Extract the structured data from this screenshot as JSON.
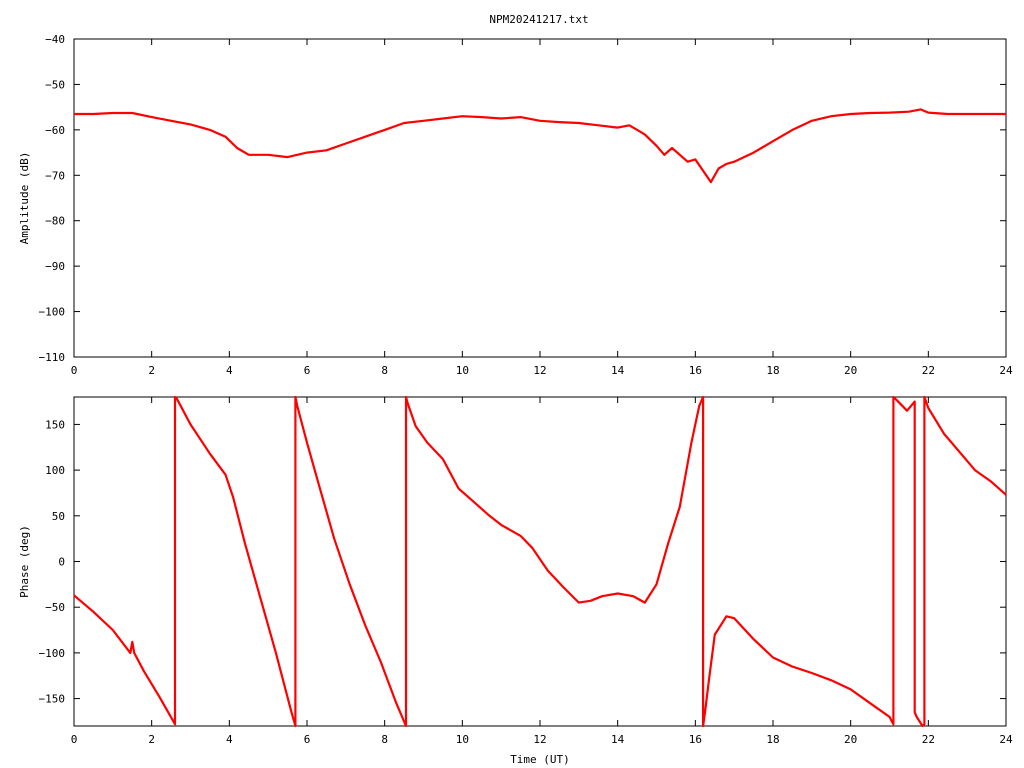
{
  "title": "NPM20241217.txt",
  "colors": {
    "series": "#ff0000",
    "axes": "#000000",
    "background": "#ffffff"
  },
  "chart_data": [
    {
      "type": "line",
      "title": "NPM20241217.txt",
      "xlabel": "",
      "ylabel": "Amplitude (dB)",
      "xlim": [
        0,
        24
      ],
      "ylim": [
        -110,
        -40
      ],
      "xticks": [
        0,
        2,
        4,
        6,
        8,
        10,
        12,
        14,
        16,
        18,
        20,
        22,
        24
      ],
      "yticks": [
        -110,
        -100,
        -90,
        -80,
        -70,
        -60,
        -50,
        -40
      ],
      "grid": false,
      "legend": "none",
      "series": [
        {
          "color": "#ff0000",
          "x": [
            0,
            0.5,
            1.0,
            1.5,
            2.0,
            2.5,
            3.0,
            3.5,
            3.9,
            4.2,
            4.5,
            5.0,
            5.5,
            6.0,
            6.5,
            7.0,
            7.5,
            8.0,
            8.5,
            9.0,
            9.5,
            10.0,
            10.5,
            11.0,
            11.5,
            12.0,
            12.5,
            13.0,
            13.5,
            14.0,
            14.3,
            14.7,
            15.0,
            15.2,
            15.4,
            15.6,
            15.8,
            16.0,
            16.2,
            16.4,
            16.6,
            16.8,
            17.0,
            17.5,
            18.0,
            18.5,
            19.0,
            19.5,
            20.0,
            20.5,
            21.0,
            21.5,
            21.8,
            22.0,
            22.5,
            23.0,
            23.5,
            24.0
          ],
          "y": [
            -56.5,
            -56.5,
            -56.3,
            -56.3,
            -57.2,
            -58.0,
            -58.8,
            -60.0,
            -61.5,
            -64.0,
            -65.5,
            -65.5,
            -66.0,
            -65.0,
            -64.5,
            -63.0,
            -61.5,
            -60.0,
            -58.5,
            -58.0,
            -57.5,
            -57.0,
            -57.2,
            -57.5,
            -57.2,
            -58.0,
            -58.3,
            -58.5,
            -59.0,
            -59.5,
            -59.0,
            -61.0,
            -63.5,
            -65.5,
            -64.0,
            -65.5,
            -67.0,
            -66.5,
            -69.0,
            -71.5,
            -68.5,
            -67.5,
            -67.0,
            -65.0,
            -62.5,
            -60.0,
            -58.0,
            -57.0,
            -56.5,
            -56.3,
            -56.2,
            -56.0,
            -55.5,
            -56.2,
            -56.5,
            -56.5,
            -56.5,
            -56.5
          ]
        }
      ]
    },
    {
      "type": "line",
      "title": "",
      "xlabel": "Time (UT)",
      "ylabel": "Phase (deg)",
      "xlim": [
        0,
        24
      ],
      "ylim": [
        -180,
        180
      ],
      "xticks": [
        0,
        2,
        4,
        6,
        8,
        10,
        12,
        14,
        16,
        18,
        20,
        22,
        24
      ],
      "yticks": [
        -150,
        -100,
        -50,
        0,
        50,
        100,
        150
      ],
      "grid": false,
      "legend": "none",
      "series": [
        {
          "color": "#ff0000",
          "x": [
            0,
            0.5,
            1.0,
            1.45,
            1.5,
            1.55,
            1.8,
            2.2,
            2.6,
            2.6,
            2.65,
            3.0,
            3.5,
            3.9,
            4.1,
            4.4,
            4.8,
            5.2,
            5.6,
            5.7,
            5.7,
            5.75,
            6.0,
            6.3,
            6.7,
            7.1,
            7.5,
            7.9,
            8.3,
            8.55,
            8.55,
            8.6,
            8.8,
            9.1,
            9.5,
            9.9,
            10.3,
            10.7,
            11.0,
            11.5,
            11.8,
            12.2,
            12.6,
            13.0,
            13.3,
            13.6,
            14.0,
            14.4,
            14.7,
            15.0,
            15.3,
            15.6,
            15.9,
            16.1,
            16.2,
            16.2,
            16.25,
            16.35,
            16.5,
            16.8,
            17.0,
            17.5,
            18.0,
            18.5,
            19.0,
            19.5,
            20.0,
            20.5,
            21.0,
            21.1,
            21.1,
            21.2,
            21.45,
            21.65,
            21.65,
            21.7,
            21.85,
            21.9,
            21.9,
            22.0,
            22.4,
            22.8,
            23.2,
            23.6,
            24.0
          ],
          "y": [
            -37,
            -55,
            -75,
            -100,
            -88,
            -100,
            -120,
            -148,
            -178,
            180,
            178,
            150,
            118,
            95,
            70,
            20,
            -40,
            -100,
            -165,
            -180,
            180,
            170,
            130,
            85,
            25,
            -25,
            -70,
            -110,
            -155,
            -180,
            180,
            172,
            148,
            130,
            112,
            80,
            65,
            50,
            40,
            28,
            15,
            -10,
            -28,
            -45,
            -43,
            -38,
            -35,
            -38,
            -45,
            -25,
            20,
            60,
            130,
            170,
            180,
            -180,
            -165,
            -130,
            -80,
            -60,
            -62,
            -85,
            -105,
            -115,
            -122,
            -130,
            -140,
            -155,
            -170,
            -178,
            180,
            176,
            165,
            175,
            -165,
            -170,
            -180,
            -178,
            180,
            168,
            140,
            120,
            100,
            88,
            73
          ]
        }
      ]
    }
  ]
}
